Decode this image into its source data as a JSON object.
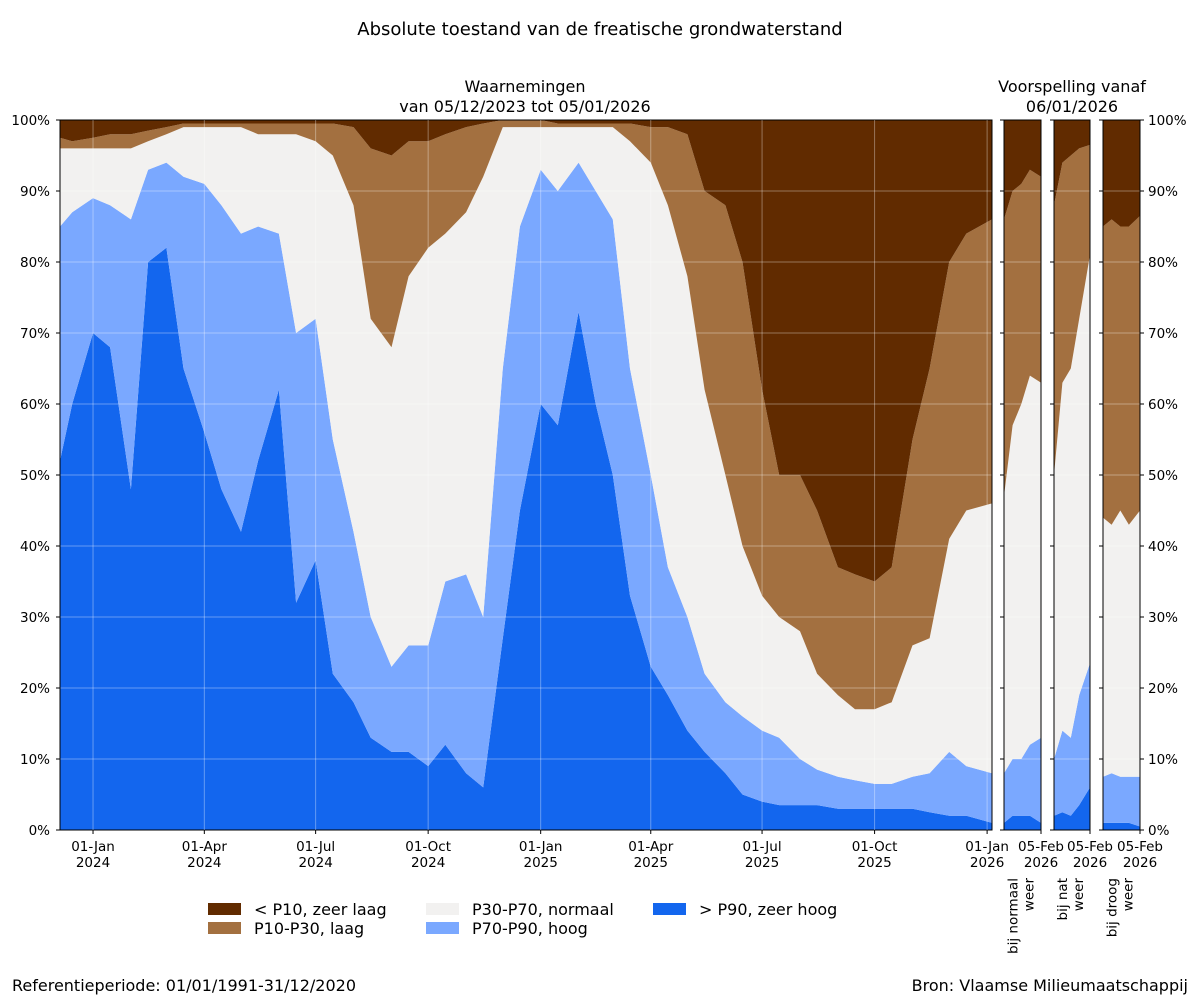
{
  "chart_data": {
    "type": "area",
    "stacked": true,
    "title": "Absolute toestand van de freatische grondwaterstand",
    "ylim": [
      0,
      100
    ],
    "y_tick_labels": [
      "0%",
      "10%",
      "20%",
      "30%",
      "40%",
      "50%",
      "60%",
      "70%",
      "80%",
      "90%",
      "100%"
    ],
    "grid": true,
    "legend_placement": "bottom",
    "classes": [
      {
        "key": "gt_p90",
        "name": "> P90, zeer hoog",
        "color": "#1366ee"
      },
      {
        "key": "p70_p90",
        "name": "P70-P90, hoog",
        "color": "#7aa8ff"
      },
      {
        "key": "p30_p70",
        "name": "P30-P70, normaal",
        "color": "#f2f1f0"
      },
      {
        "key": "p10_p30",
        "name": "P10-P30, laag",
        "color": "#a37040"
      },
      {
        "key": "lt_p10",
        "name": "< P10, zeer laag",
        "color": "#612b00"
      }
    ],
    "legend_order": [
      "lt_p10",
      "p10_p30",
      "p30_p70",
      "p70_p90",
      "gt_p90"
    ],
    "row_fields": [
      "date",
      "gt_p90",
      "p70_p90",
      "p30_p70",
      "p10_p30",
      "lt_p10"
    ],
    "observed": {
      "title_line1": "Waarnemingen",
      "title_line2": "van 05/12/2023 tot 05/01/2026",
      "xlim": [
        "2023-12-05",
        "2026-01-05"
      ],
      "x_ticks": [
        {
          "date": "2024-01-01",
          "label": "01-Jan",
          "year": "2024"
        },
        {
          "date": "2024-04-01",
          "label": "01-Apr",
          "year": "2024"
        },
        {
          "date": "2024-07-01",
          "label": "01-Jul",
          "year": "2024"
        },
        {
          "date": "2024-10-01",
          "label": "01-Oct",
          "year": "2024"
        },
        {
          "date": "2025-01-01",
          "label": "01-Jan",
          "year": "2025"
        },
        {
          "date": "2025-04-01",
          "label": "01-Apr",
          "year": "2025"
        },
        {
          "date": "2025-07-01",
          "label": "01-Jul",
          "year": "2025"
        },
        {
          "date": "2025-10-01",
          "label": "01-Oct",
          "year": "2025"
        },
        {
          "date": "2026-01-01",
          "label": "01-Jan",
          "year": "2026"
        }
      ],
      "rows": [
        [
          "2023-12-05",
          52,
          33,
          11,
          1.5,
          2.5
        ],
        [
          "2023-12-15",
          60,
          27,
          9,
          1,
          3
        ],
        [
          "2024-01-01",
          70,
          19,
          7,
          1.5,
          2.5
        ],
        [
          "2024-01-15",
          68,
          20,
          8,
          2,
          2
        ],
        [
          "2024-02-01",
          48,
          38,
          10,
          2,
          2
        ],
        [
          "2024-02-15",
          80,
          13,
          4,
          1.5,
          1.5
        ],
        [
          "2024-03-01",
          82,
          12,
          4,
          1,
          1
        ],
        [
          "2024-03-15",
          65,
          27,
          7,
          0.5,
          0.5
        ],
        [
          "2024-04-01",
          56,
          35,
          8,
          0.5,
          0.5
        ],
        [
          "2024-04-15",
          48,
          40,
          11,
          0.5,
          0.5
        ],
        [
          "2024-05-01",
          42,
          42,
          15,
          0.5,
          0.5
        ],
        [
          "2024-05-15",
          52,
          33,
          13,
          1.5,
          0.5
        ],
        [
          "2024-06-01",
          62,
          22,
          14,
          1.5,
          0.5
        ],
        [
          "2024-06-15",
          32,
          38,
          28,
          1.5,
          0.5
        ],
        [
          "2024-07-01",
          38,
          34,
          25,
          2.5,
          0.5
        ],
        [
          "2024-07-15",
          22,
          33,
          40,
          4.5,
          0.5
        ],
        [
          "2024-08-01",
          18,
          24,
          46,
          11,
          1
        ],
        [
          "2024-08-15",
          13,
          17,
          42,
          24,
          4
        ],
        [
          "2024-09-01",
          11,
          12,
          45,
          27,
          5
        ],
        [
          "2024-09-15",
          11,
          15,
          52,
          19,
          3
        ],
        [
          "2024-10-01",
          9,
          17,
          56,
          15,
          3
        ],
        [
          "2024-10-15",
          12,
          23,
          49,
          14,
          2
        ],
        [
          "2024-11-01",
          8,
          28,
          51,
          12,
          1
        ],
        [
          "2024-11-15",
          6,
          24,
          62,
          7.5,
          0.5
        ],
        [
          "2024-12-01",
          27,
          38,
          34,
          1,
          0
        ],
        [
          "2024-12-15",
          45,
          40,
          14,
          1,
          0
        ],
        [
          "2025-01-01",
          60,
          33,
          6,
          1,
          0
        ],
        [
          "2025-01-15",
          57,
          33,
          9,
          0.5,
          0.5
        ],
        [
          "2025-02-01",
          73,
          21,
          5,
          0.5,
          0.5
        ],
        [
          "2025-02-15",
          60,
          30,
          9,
          0.5,
          0.5
        ],
        [
          "2025-03-01",
          50,
          36,
          13,
          0.5,
          0.5
        ],
        [
          "2025-03-15",
          33,
          32,
          32,
          2.5,
          0.5
        ],
        [
          "2025-04-01",
          23,
          27,
          44,
          5,
          1
        ],
        [
          "2025-04-15",
          19,
          18,
          51,
          11,
          1
        ],
        [
          "2025-05-01",
          14,
          16,
          48,
          20,
          2
        ],
        [
          "2025-05-15",
          11,
          11,
          40,
          28,
          10
        ],
        [
          "2025-06-01",
          8,
          10,
          32,
          38,
          12
        ],
        [
          "2025-06-15",
          5,
          11,
          24,
          40,
          20
        ],
        [
          "2025-07-01",
          4,
          10,
          19,
          29,
          38
        ],
        [
          "2025-07-15",
          3.5,
          9.5,
          17,
          20,
          50
        ],
        [
          "2025-08-01",
          3.5,
          6.5,
          18,
          22,
          50
        ],
        [
          "2025-08-15",
          3.5,
          5,
          13.5,
          23,
          55
        ],
        [
          "2025-09-01",
          3,
          4.5,
          11.5,
          18,
          63
        ],
        [
          "2025-09-15",
          3,
          4,
          10,
          19,
          64
        ],
        [
          "2025-10-01",
          3,
          3.5,
          10.5,
          18,
          65
        ],
        [
          "2025-10-15",
          3,
          3.5,
          11.5,
          19,
          63
        ],
        [
          "2025-11-01",
          3,
          4.5,
          18.5,
          29,
          45
        ],
        [
          "2025-11-15",
          2.5,
          5.5,
          19,
          38,
          35
        ],
        [
          "2025-12-01",
          2,
          9,
          30,
          39,
          20
        ],
        [
          "2025-12-15",
          2,
          7,
          36,
          39,
          16
        ],
        [
          "2026-01-05",
          1,
          7,
          38,
          40,
          14
        ]
      ]
    },
    "forecast": {
      "title_line1": "Voorspelling vanaf",
      "title_line2": "06/01/2026",
      "xlim": [
        "2026-01-06",
        "2026-02-05"
      ],
      "x_tick": {
        "date": "2026-02-05",
        "label": "05-Feb",
        "year": "2026"
      },
      "scenarios": [
        {
          "label_line1": "bij normaal",
          "label_line2": "weer",
          "rows": [
            [
              "2026-01-06",
              1,
              7,
              39,
              39,
              14
            ],
            [
              "2026-01-13",
              2,
              8,
              47,
              33,
              10
            ],
            [
              "2026-01-20",
              2,
              8,
              50,
              31,
              9
            ],
            [
              "2026-01-27",
              2,
              10,
              52,
              29,
              7
            ],
            [
              "2026-02-05",
              1,
              12,
              50,
              29,
              8
            ]
          ]
        },
        {
          "label_line1": "bij nat",
          "label_line2": "weer",
          "rows": [
            [
              "2026-01-06",
              2,
              8,
              40,
              38,
              12
            ],
            [
              "2026-01-13",
              2.5,
              11.5,
              49,
              31,
              6
            ],
            [
              "2026-01-20",
              2,
              11,
              52,
              30,
              5
            ],
            [
              "2026-01-27",
              3.5,
              15.5,
              53,
              24,
              4
            ],
            [
              "2026-02-05",
              6,
              17.5,
              57.5,
              15.5,
              3.5
            ]
          ]
        },
        {
          "label_line1": "bij droog",
          "label_line2": "weer",
          "rows": [
            [
              "2026-01-06",
              1,
              6.5,
              36.5,
              41,
              15
            ],
            [
              "2026-01-13",
              1,
              7,
              35,
              43,
              14
            ],
            [
              "2026-01-20",
              1,
              6.5,
              37.5,
              40,
              15
            ],
            [
              "2026-01-27",
              1,
              6.5,
              35.5,
              42,
              15
            ],
            [
              "2026-02-05",
              0.5,
              7,
              37.5,
              41.5,
              13.5
            ]
          ]
        }
      ]
    }
  },
  "footer": {
    "reference": "Referentieperiode: 01/01/1991-31/12/2020",
    "source": "Bron: Vlaamse Milieumaatschappij"
  }
}
